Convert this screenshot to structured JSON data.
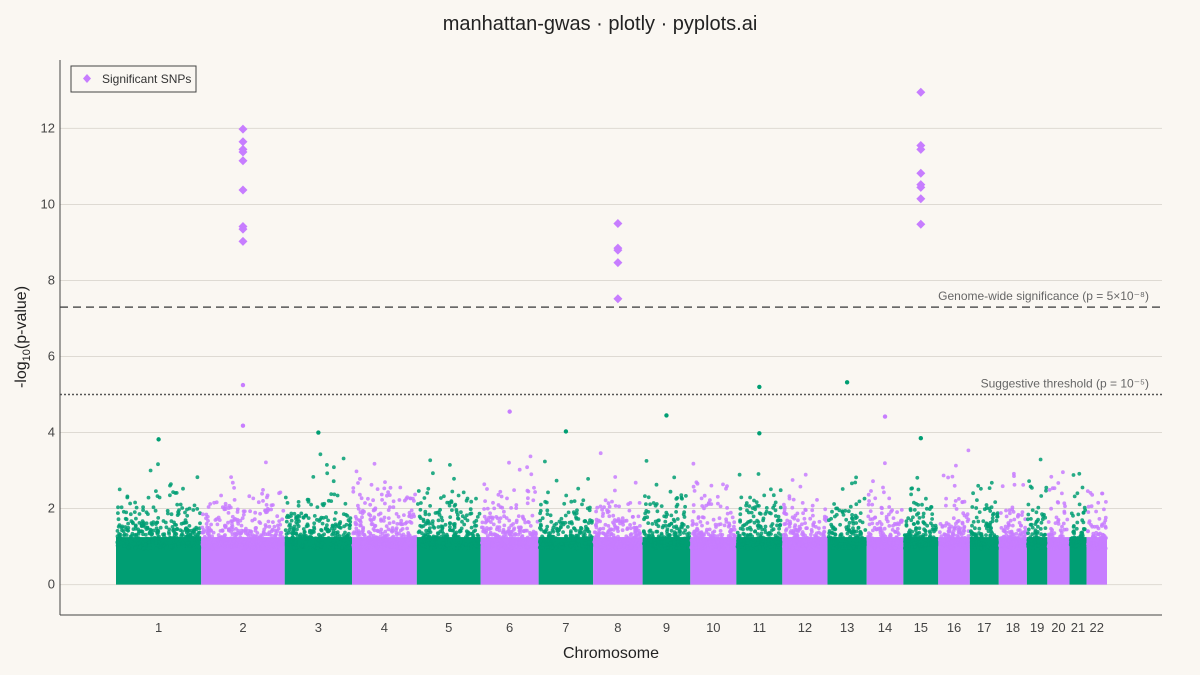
{
  "chart_data": {
    "type": "scatter",
    "title": "manhattan-gwas · plotly · pyplots.ai",
    "xlabel": "Chromosome",
    "ylabel_prefix": "-log",
    "ylabel_sub": "10",
    "ylabel_suffix": "(p-value)",
    "ylim": [
      -0.8,
      13.8
    ],
    "yticks": [
      0,
      2,
      4,
      6,
      8,
      10,
      12
    ],
    "grid": true,
    "legend": {
      "position": "top-left",
      "entries": [
        {
          "name": "Significant SNPs",
          "color": "#c77dff",
          "marker": "diamond"
        }
      ]
    },
    "colors": {
      "even_chromosomes": "#c77dff",
      "odd_chromosomes": "#009e73",
      "threshold_line": "#555555"
    },
    "chromosomes": [
      {
        "label": "1",
        "start": 0.0,
        "end": 1.0
      },
      {
        "label": "2",
        "start": 1.0,
        "end": 1.98
      },
      {
        "label": "3",
        "start": 1.98,
        "end": 2.77
      },
      {
        "label": "4",
        "start": 2.77,
        "end": 3.53
      },
      {
        "label": "5",
        "start": 3.53,
        "end": 4.28
      },
      {
        "label": "6",
        "start": 4.28,
        "end": 4.96
      },
      {
        "label": "7",
        "start": 4.96,
        "end": 5.6
      },
      {
        "label": "8",
        "start": 5.6,
        "end": 6.18
      },
      {
        "label": "9",
        "start": 6.18,
        "end": 6.74
      },
      {
        "label": "10",
        "start": 6.74,
        "end": 7.28
      },
      {
        "label": "11",
        "start": 7.28,
        "end": 7.82
      },
      {
        "label": "12",
        "start": 7.82,
        "end": 8.35
      },
      {
        "label": "13",
        "start": 8.35,
        "end": 8.81
      },
      {
        "label": "14",
        "start": 8.81,
        "end": 9.24
      },
      {
        "label": "15",
        "start": 9.24,
        "end": 9.65
      },
      {
        "label": "16",
        "start": 9.65,
        "end": 10.02
      },
      {
        "label": "17",
        "start": 10.02,
        "end": 10.36
      },
      {
        "label": "18",
        "start": 10.36,
        "end": 10.69
      },
      {
        "label": "19",
        "start": 10.69,
        "end": 10.93
      },
      {
        "label": "20",
        "start": 10.93,
        "end": 11.19
      },
      {
        "label": "21",
        "start": 11.19,
        "end": 11.39
      },
      {
        "label": "22",
        "start": 11.39,
        "end": 11.63
      }
    ],
    "thresholds": [
      {
        "name": "Genome-wide significance",
        "label": "Genome-wide significance (p = 5×10⁻⁸)",
        "y": 7.3,
        "style": "dashed"
      },
      {
        "name": "Suggestive threshold",
        "label": "Suggestive threshold (p = 10⁻⁵)",
        "y": 5.0,
        "style": "dotted"
      }
    ],
    "significant_snps": [
      {
        "chr": "2",
        "y": [
          11.98,
          11.65,
          11.45,
          11.38,
          11.15,
          10.38,
          9.42,
          9.35,
          9.03
        ]
      },
      {
        "chr": "8",
        "y": [
          9.5,
          8.85,
          8.8,
          8.47,
          7.52
        ]
      },
      {
        "chr": "15",
        "y": [
          12.95,
          11.55,
          11.45,
          10.82,
          10.52,
          10.45,
          10.15,
          9.48
        ]
      }
    ],
    "notable_points": [
      {
        "chr": "2",
        "y": 5.25
      },
      {
        "chr": "11",
        "y": 5.2
      },
      {
        "chr": "13",
        "y": 5.32
      },
      {
        "chr": "6",
        "y": 4.55
      },
      {
        "chr": "9",
        "y": 4.45
      },
      {
        "chr": "14",
        "y": 4.42
      },
      {
        "chr": "2",
        "y": 4.18
      },
      {
        "chr": "7",
        "y": 4.03
      },
      {
        "chr": "1",
        "y": 3.82
      },
      {
        "chr": "3",
        "y": 4.0
      },
      {
        "chr": "15",
        "y": 3.85
      },
      {
        "chr": "11",
        "y": 3.98
      }
    ]
  }
}
